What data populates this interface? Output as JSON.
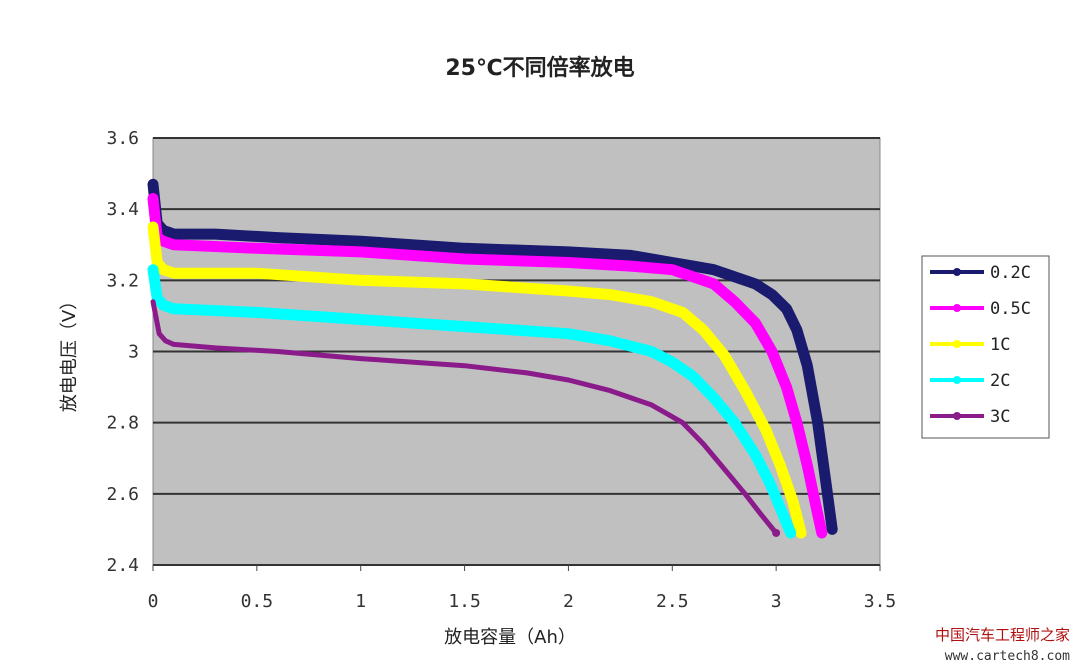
{
  "chart_data": {
    "type": "line",
    "title": "25℃不同倍率放电",
    "xlabel": "放电容量（Ah）",
    "ylabel": "放电电压（V）",
    "xlim": [
      0,
      3.5
    ],
    "ylim": [
      2.4,
      3.6
    ],
    "xticks": [
      "0",
      "0.5",
      "1",
      "1.5",
      "2",
      "2.5",
      "3",
      "3.5"
    ],
    "yticks": [
      "2.4",
      "2.6",
      "2.8",
      "3",
      "3.2",
      "3.4",
      "3.6"
    ],
    "grid": "horizontal",
    "legend_position": "right",
    "series": [
      {
        "name": "0.2C",
        "color": "#1a1a6e",
        "points": [
          [
            0,
            3.47
          ],
          [
            0.02,
            3.36
          ],
          [
            0.05,
            3.34
          ],
          [
            0.1,
            3.33
          ],
          [
            0.3,
            3.33
          ],
          [
            0.6,
            3.32
          ],
          [
            1.0,
            3.31
          ],
          [
            1.5,
            3.29
          ],
          [
            2.0,
            3.28
          ],
          [
            2.3,
            3.27
          ],
          [
            2.5,
            3.25
          ],
          [
            2.6,
            3.24
          ],
          [
            2.7,
            3.23
          ],
          [
            2.8,
            3.21
          ],
          [
            2.9,
            3.19
          ],
          [
            2.98,
            3.16
          ],
          [
            3.05,
            3.12
          ],
          [
            3.1,
            3.06
          ],
          [
            3.15,
            2.96
          ],
          [
            3.2,
            2.8
          ],
          [
            3.24,
            2.63
          ],
          [
            3.27,
            2.5
          ]
        ]
      },
      {
        "name": "0.5C",
        "color": "#ff00ff",
        "points": [
          [
            0,
            3.43
          ],
          [
            0.02,
            3.32
          ],
          [
            0.05,
            3.31
          ],
          [
            0.1,
            3.3
          ],
          [
            0.5,
            3.29
          ],
          [
            1.0,
            3.28
          ],
          [
            1.5,
            3.26
          ],
          [
            2.0,
            3.25
          ],
          [
            2.3,
            3.24
          ],
          [
            2.5,
            3.23
          ],
          [
            2.6,
            3.21
          ],
          [
            2.7,
            3.19
          ],
          [
            2.8,
            3.14
          ],
          [
            2.9,
            3.08
          ],
          [
            2.98,
            3.0
          ],
          [
            3.05,
            2.9
          ],
          [
            3.1,
            2.8
          ],
          [
            3.15,
            2.68
          ],
          [
            3.19,
            2.57
          ],
          [
            3.22,
            2.49
          ]
        ]
      },
      {
        "name": "1C",
        "color": "#ffff00",
        "points": [
          [
            0,
            3.35
          ],
          [
            0.02,
            3.25
          ],
          [
            0.05,
            3.23
          ],
          [
            0.1,
            3.22
          ],
          [
            0.5,
            3.22
          ],
          [
            1.0,
            3.2
          ],
          [
            1.5,
            3.19
          ],
          [
            2.0,
            3.17
          ],
          [
            2.2,
            3.16
          ],
          [
            2.4,
            3.14
          ],
          [
            2.55,
            3.11
          ],
          [
            2.65,
            3.06
          ],
          [
            2.75,
            2.99
          ],
          [
            2.85,
            2.89
          ],
          [
            2.95,
            2.78
          ],
          [
            3.02,
            2.68
          ],
          [
            3.08,
            2.58
          ],
          [
            3.12,
            2.49
          ]
        ]
      },
      {
        "name": "2C",
        "color": "#00ffff",
        "points": [
          [
            0,
            3.23
          ],
          [
            0.02,
            3.15
          ],
          [
            0.05,
            3.13
          ],
          [
            0.1,
            3.12
          ],
          [
            0.5,
            3.11
          ],
          [
            1.0,
            3.09
          ],
          [
            1.5,
            3.07
          ],
          [
            2.0,
            3.05
          ],
          [
            2.2,
            3.03
          ],
          [
            2.4,
            3.0
          ],
          [
            2.5,
            2.97
          ],
          [
            2.6,
            2.93
          ],
          [
            2.7,
            2.87
          ],
          [
            2.8,
            2.8
          ],
          [
            2.9,
            2.71
          ],
          [
            2.97,
            2.63
          ],
          [
            3.02,
            2.56
          ],
          [
            3.07,
            2.49
          ]
        ]
      },
      {
        "name": "3C",
        "color": "#8b1a8b",
        "points": [
          [
            0,
            3.14
          ],
          [
            0.03,
            3.05
          ],
          [
            0.06,
            3.03
          ],
          [
            0.1,
            3.02
          ],
          [
            0.3,
            3.01
          ],
          [
            0.6,
            3.0
          ],
          [
            1.0,
            2.98
          ],
          [
            1.5,
            2.96
          ],
          [
            1.8,
            2.94
          ],
          [
            2.0,
            2.92
          ],
          [
            2.2,
            2.89
          ],
          [
            2.4,
            2.85
          ],
          [
            2.55,
            2.8
          ],
          [
            2.65,
            2.74
          ],
          [
            2.75,
            2.67
          ],
          [
            2.85,
            2.6
          ],
          [
            2.93,
            2.54
          ],
          [
            3.0,
            2.49
          ]
        ]
      }
    ]
  },
  "watermark": {
    "name": "中国汽车工程师之家",
    "url": "www.cartech8.com"
  }
}
